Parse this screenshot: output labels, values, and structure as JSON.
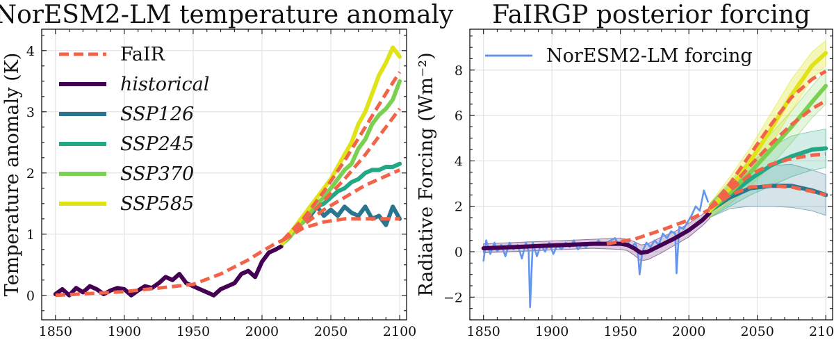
{
  "chart_data": [
    {
      "type": "line",
      "title": "NorESM2-LM temperature anomaly",
      "xlabel": "",
      "ylabel": "Temperature anomaly (K)",
      "xlim": [
        1840,
        2105
      ],
      "ylim": [
        -0.4,
        4.35
      ],
      "xticks": [
        1850,
        1900,
        1950,
        2000,
        2050,
        2100
      ],
      "yticks": [
        0,
        1,
        2,
        3,
        4
      ],
      "grid": true,
      "legend_position": "top-left",
      "legend": [
        {
          "label": "FaIR",
          "style": "dashed",
          "color": "#f26449",
          "italic": false
        },
        {
          "label": "historical",
          "style": "solid",
          "color": "#440154",
          "italic": true
        },
        {
          "label": "SSP126",
          "style": "solid",
          "color": "#2a768e",
          "italic": true
        },
        {
          "label": "SSP245",
          "style": "solid",
          "color": "#22a884",
          "italic": true
        },
        {
          "label": "SSP370",
          "style": "solid",
          "color": "#7ad151",
          "italic": true
        },
        {
          "label": "SSP585",
          "style": "solid",
          "color": "#dfe318",
          "italic": true
        }
      ],
      "series": [
        {
          "name": "historical",
          "color": "#440154",
          "x": [
            1850,
            1855,
            1860,
            1865,
            1870,
            1875,
            1880,
            1885,
            1890,
            1895,
            1900,
            1905,
            1910,
            1915,
            1920,
            1925,
            1930,
            1935,
            1940,
            1945,
            1950,
            1955,
            1960,
            1965,
            1970,
            1975,
            1980,
            1985,
            1990,
            1995,
            2000,
            2005,
            2010,
            2014
          ],
          "y": [
            0.02,
            0.1,
            0.0,
            0.12,
            0.05,
            0.15,
            0.1,
            0.02,
            0.08,
            0.12,
            0.1,
            0.0,
            0.08,
            0.15,
            0.12,
            0.2,
            0.3,
            0.25,
            0.35,
            0.2,
            0.15,
            0.1,
            0.05,
            0.0,
            0.1,
            0.15,
            0.2,
            0.35,
            0.4,
            0.3,
            0.55,
            0.7,
            0.75,
            0.8
          ]
        },
        {
          "name": "SSP126",
          "color": "#2a768e",
          "x": [
            2015,
            2020,
            2025,
            2030,
            2035,
            2040,
            2045,
            2050,
            2055,
            2060,
            2065,
            2070,
            2075,
            2080,
            2085,
            2090,
            2095,
            2100
          ],
          "y": [
            0.85,
            0.95,
            1.1,
            1.2,
            1.3,
            1.45,
            1.3,
            1.4,
            1.3,
            1.45,
            1.35,
            1.3,
            1.45,
            1.25,
            1.3,
            1.15,
            1.45,
            1.25
          ]
        },
        {
          "name": "SSP245",
          "color": "#22a884",
          "x": [
            2015,
            2020,
            2025,
            2030,
            2035,
            2040,
            2045,
            2050,
            2055,
            2060,
            2065,
            2070,
            2075,
            2080,
            2085,
            2090,
            2095,
            2100
          ],
          "y": [
            0.85,
            0.95,
            1.1,
            1.2,
            1.35,
            1.45,
            1.5,
            1.6,
            1.7,
            1.75,
            1.85,
            1.9,
            2.0,
            2.05,
            2.05,
            2.1,
            2.1,
            2.15
          ]
        },
        {
          "name": "SSP370",
          "color": "#7ad151",
          "x": [
            2015,
            2020,
            2025,
            2030,
            2035,
            2040,
            2045,
            2050,
            2055,
            2060,
            2065,
            2070,
            2075,
            2080,
            2085,
            2090,
            2095,
            2100
          ],
          "y": [
            0.85,
            0.95,
            1.1,
            1.2,
            1.35,
            1.5,
            1.6,
            1.75,
            1.9,
            2.05,
            2.15,
            2.4,
            2.55,
            2.8,
            2.95,
            3.05,
            3.2,
            3.5
          ]
        },
        {
          "name": "SSP585",
          "color": "#dfe318",
          "x": [
            2015,
            2020,
            2025,
            2030,
            2035,
            2040,
            2045,
            2050,
            2055,
            2060,
            2065,
            2070,
            2075,
            2080,
            2085,
            2090,
            2095,
            2100
          ],
          "y": [
            0.85,
            1.0,
            1.15,
            1.3,
            1.45,
            1.6,
            1.75,
            1.9,
            2.1,
            2.3,
            2.5,
            2.8,
            3.0,
            3.3,
            3.6,
            3.8,
            4.05,
            3.9
          ]
        },
        {
          "name": "FaIR",
          "color": "#f26449",
          "dashed": true,
          "x": [
            1850,
            1900,
            1950,
            1970,
            1990,
            2000,
            2010,
            2015
          ],
          "y": [
            0.0,
            0.06,
            0.18,
            0.35,
            0.58,
            0.72,
            0.85,
            0.9
          ]
        },
        {
          "name": "FaIR SSP126",
          "color": "#f26449",
          "dashed": true,
          "x": [
            2015,
            2030,
            2045,
            2060,
            2075,
            2090,
            2100
          ],
          "y": [
            0.9,
            1.1,
            1.2,
            1.25,
            1.25,
            1.25,
            1.25
          ]
        },
        {
          "name": "FaIR SSP245",
          "color": "#f26449",
          "dashed": true,
          "x": [
            2015,
            2030,
            2045,
            2060,
            2075,
            2090,
            2100
          ],
          "y": [
            0.9,
            1.15,
            1.4,
            1.6,
            1.8,
            1.95,
            2.05
          ]
        },
        {
          "name": "FaIR SSP370",
          "color": "#f26449",
          "dashed": true,
          "x": [
            2015,
            2030,
            2045,
            2060,
            2075,
            2090,
            2100
          ],
          "y": [
            0.9,
            1.2,
            1.55,
            1.9,
            2.3,
            2.75,
            3.05
          ]
        },
        {
          "name": "FaIR SSP585",
          "color": "#f26449",
          "dashed": true,
          "x": [
            2015,
            2030,
            2045,
            2060,
            2075,
            2090,
            2100
          ],
          "y": [
            0.9,
            1.25,
            1.7,
            2.2,
            2.75,
            3.3,
            3.65
          ]
        }
      ]
    },
    {
      "type": "line",
      "title": "FaIRGP posterior forcing",
      "xlabel": "",
      "ylabel": "Radiative Forcing (Wm⁻²)",
      "xlim": [
        1840,
        2105
      ],
      "ylim": [
        -3.0,
        9.8
      ],
      "xticks": [
        1850,
        1900,
        1950,
        2000,
        2050,
        2100
      ],
      "yticks": [
        -2,
        0,
        2,
        4,
        6,
        8
      ],
      "grid": true,
      "legend_position": "top-left",
      "legend": [
        {
          "label": "NorESM2-LM forcing",
          "style": "solid",
          "color": "#6495ed",
          "italic": false
        }
      ],
      "series": [
        {
          "name": "NorESM2-LM forcing",
          "color": "#6495ed",
          "x": [
            1850,
            1852,
            1855,
            1858,
            1860,
            1863,
            1866,
            1869,
            1872,
            1875,
            1878,
            1881,
            1883,
            1884,
            1886,
            1889,
            1892,
            1895,
            1898,
            1901,
            1904,
            1907,
            1910,
            1913,
            1916,
            1919,
            1922,
            1925,
            1928,
            1931,
            1934,
            1937,
            1940,
            1943,
            1946,
            1949,
            1952,
            1955,
            1958,
            1961,
            1963,
            1964,
            1966,
            1969,
            1972,
            1975,
            1978,
            1981,
            1984,
            1987,
            1990,
            1991,
            1993,
            1996,
            1999,
            2002,
            2005,
            2008,
            2011,
            2014
          ],
          "y": [
            -0.4,
            0.5,
            -0.1,
            0.4,
            0.0,
            0.3,
            -0.2,
            0.4,
            0.1,
            0.3,
            -0.3,
            0.4,
            0.0,
            -2.45,
            0.4,
            -0.2,
            0.3,
            0.0,
            0.4,
            -0.1,
            0.3,
            0.1,
            0.4,
            0.2,
            0.5,
            0.1,
            0.3,
            0.2,
            0.4,
            0.3,
            0.5,
            0.3,
            0.4,
            0.5,
            0.6,
            0.3,
            0.4,
            0.5,
            0.2,
            0.4,
            -0.2,
            -1.0,
            0.0,
            0.4,
            0.2,
            0.5,
            0.3,
            0.8,
            0.6,
            0.9,
            0.8,
            -0.95,
            1.1,
            1.0,
            1.3,
            1.6,
            2.0,
            1.8,
            2.7,
            2.2
          ]
        },
        {
          "name": "posterior mean",
          "color": "#440154",
          "x": [
            1850,
            1870,
            1890,
            1910,
            1930,
            1950,
            1955,
            1960,
            1965,
            1970,
            1980,
            1990,
            2000,
            2010,
            2015
          ],
          "y": [
            0.15,
            0.2,
            0.25,
            0.3,
            0.35,
            0.35,
            0.3,
            0.15,
            -0.05,
            0.0,
            0.3,
            0.6,
            0.95,
            1.4,
            1.7
          ]
        },
        {
          "name": "SSP126 posterior",
          "color": "#2a768e",
          "x": [
            2015,
            2030,
            2045,
            2060,
            2075,
            2090,
            2100
          ],
          "y": [
            1.8,
            2.4,
            2.8,
            2.9,
            2.9,
            2.7,
            2.5
          ]
        },
        {
          "name": "SSP245 posterior",
          "color": "#22a884",
          "x": [
            2015,
            2030,
            2045,
            2060,
            2075,
            2090,
            2100
          ],
          "y": [
            1.8,
            2.5,
            3.2,
            3.8,
            4.2,
            4.5,
            4.55
          ]
        },
        {
          "name": "SSP370 posterior",
          "color": "#7ad151",
          "x": [
            2015,
            2030,
            2045,
            2060,
            2075,
            2090,
            2100
          ],
          "y": [
            1.8,
            2.6,
            3.5,
            4.5,
            5.5,
            6.6,
            7.3
          ]
        },
        {
          "name": "SSP585 posterior",
          "color": "#dfe318",
          "x": [
            2015,
            2030,
            2045,
            2060,
            2075,
            2090,
            2100
          ],
          "y": [
            1.8,
            2.8,
            4.0,
            5.4,
            6.9,
            8.2,
            8.75
          ]
        },
        {
          "name": "FaIR historical",
          "color": "#f26449",
          "dashed": true,
          "x": [
            1940,
            1960,
            1980,
            2000,
            2015
          ],
          "y": [
            0.35,
            0.55,
            0.95,
            1.4,
            1.85
          ]
        },
        {
          "name": "FaIR SSP126",
          "color": "#f26449",
          "dashed": true,
          "x": [
            2015,
            2030,
            2045,
            2060,
            2075,
            2090,
            2100
          ],
          "y": [
            1.9,
            2.5,
            2.85,
            2.9,
            2.85,
            2.65,
            2.5
          ]
        },
        {
          "name": "FaIR SSP245",
          "color": "#f26449",
          "dashed": true,
          "x": [
            2015,
            2030,
            2045,
            2060,
            2075,
            2090,
            2100
          ],
          "y": [
            1.9,
            2.7,
            3.4,
            3.85,
            4.1,
            4.25,
            4.3
          ]
        },
        {
          "name": "FaIR SSP370",
          "color": "#f26449",
          "dashed": true,
          "x": [
            2015,
            2030,
            2045,
            2060,
            2075,
            2090,
            2100
          ],
          "y": [
            1.9,
            2.8,
            3.8,
            4.75,
            5.6,
            6.3,
            6.65
          ]
        },
        {
          "name": "FaIR SSP585",
          "color": "#f26449",
          "dashed": true,
          "x": [
            2015,
            2030,
            2045,
            2060,
            2075,
            2090,
            2100
          ],
          "y": [
            1.9,
            3.0,
            4.3,
            5.6,
            6.8,
            7.6,
            7.95
          ]
        }
      ],
      "bands": [
        {
          "name": "historical band",
          "color": "#440154",
          "opacity": 0.2,
          "x": [
            1850,
            1870,
            1890,
            1910,
            1930,
            1950,
            1955,
            1960,
            1965,
            1970,
            1980,
            1990,
            2000,
            2010,
            2015
          ],
          "lower": [
            -0.05,
            0.0,
            0.05,
            0.1,
            0.15,
            0.1,
            0.05,
            -0.15,
            -0.4,
            -0.35,
            -0.05,
            0.3,
            0.65,
            1.15,
            1.45
          ],
          "upper": [
            0.35,
            0.4,
            0.45,
            0.5,
            0.55,
            0.6,
            0.55,
            0.45,
            0.3,
            0.35,
            0.65,
            0.9,
            1.25,
            1.65,
            1.95
          ]
        },
        {
          "name": "SSP126 band",
          "color": "#2a768e",
          "opacity": 0.2,
          "x": [
            2015,
            2030,
            2045,
            2060,
            2075,
            2090,
            2100
          ],
          "lower": [
            1.5,
            1.9,
            2.0,
            2.0,
            1.95,
            1.8,
            1.6
          ],
          "upper": [
            2.1,
            2.9,
            3.5,
            3.8,
            3.85,
            3.6,
            3.4
          ]
        },
        {
          "name": "SSP245 band",
          "color": "#22a884",
          "opacity": 0.2,
          "x": [
            2015,
            2030,
            2045,
            2060,
            2075,
            2090,
            2100
          ],
          "lower": [
            1.5,
            2.0,
            2.5,
            2.9,
            3.3,
            3.6,
            3.7
          ],
          "upper": [
            2.1,
            3.0,
            3.9,
            4.6,
            5.1,
            5.3,
            5.4
          ]
        },
        {
          "name": "SSP370 band",
          "color": "#7ad151",
          "opacity": 0.2,
          "x": [
            2015,
            2030,
            2045,
            2060,
            2075,
            2090,
            2100
          ],
          "lower": [
            1.5,
            2.1,
            2.9,
            3.8,
            4.8,
            5.9,
            6.5
          ],
          "upper": [
            2.1,
            3.1,
            4.1,
            5.2,
            6.2,
            7.3,
            8.0
          ]
        },
        {
          "name": "SSP585 band",
          "color": "#dfe318",
          "opacity": 0.3,
          "x": [
            2015,
            2030,
            2045,
            2060,
            2075,
            2090,
            2100
          ],
          "lower": [
            1.5,
            2.3,
            3.4,
            4.7,
            6.2,
            7.6,
            8.2
          ],
          "upper": [
            2.1,
            3.3,
            4.6,
            6.1,
            7.6,
            8.8,
            9.3
          ]
        }
      ]
    }
  ]
}
